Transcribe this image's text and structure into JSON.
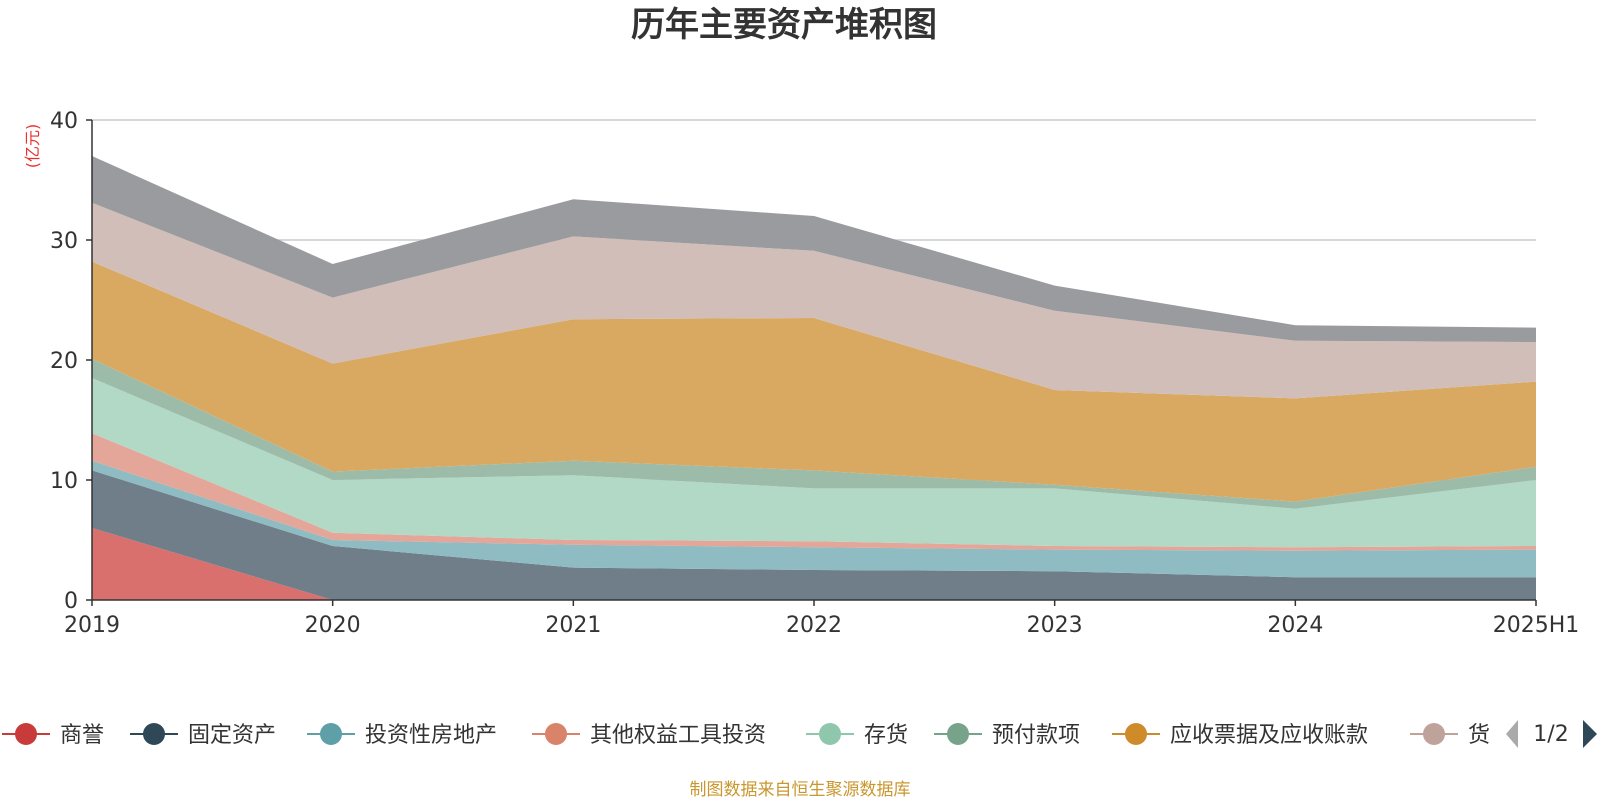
{
  "chart_data": {
    "type": "area",
    "stacked": true,
    "title": "历年主要资产堆积图",
    "y_unit": "(亿元)",
    "ylim": [
      0,
      40
    ],
    "y_ticks": [
      "0",
      "10",
      "20",
      "30",
      "40"
    ],
    "categories": [
      "2019",
      "2020",
      "2021",
      "2022",
      "2023",
      "2024",
      "2025H1"
    ],
    "grid": true,
    "series": [
      {
        "name": "商誉",
        "color": "#d9706e",
        "values": [
          6.0,
          0,
          0,
          0,
          0,
          0,
          0
        ]
      },
      {
        "name": "固定资产",
        "color": "#6f7e89",
        "values": [
          4.8,
          4.5,
          2.7,
          2.5,
          2.4,
          1.9,
          1.9
        ]
      },
      {
        "name": "投资性房地产",
        "color": "#8fbbc2",
        "values": [
          0.8,
          0.5,
          1.9,
          1.9,
          1.8,
          2.2,
          2.3
        ]
      },
      {
        "name": "其他权益工具投资",
        "color": "#e3a698",
        "values": [
          2.3,
          0.6,
          0.4,
          0.5,
          0.3,
          0.3,
          0.3
        ]
      },
      {
        "name": "存货",
        "color": "#b2d8c6",
        "values": [
          4.6,
          4.4,
          5.4,
          4.4,
          4.8,
          3.2,
          5.5
        ]
      },
      {
        "name": "预付款项",
        "color": "#9dbba9",
        "values": [
          1.6,
          0.7,
          1.2,
          1.5,
          0.3,
          0.6,
          1.1
        ]
      },
      {
        "name": "应收票据及应收账款",
        "color": "#d9a962",
        "values": [
          8.1,
          9.0,
          11.8,
          12.7,
          7.9,
          8.6,
          7.1
        ]
      },
      {
        "name": "货币资金",
        "color": "#d1beb8",
        "values": [
          4.9,
          5.5,
          6.9,
          5.6,
          6.6,
          4.8,
          3.3
        ]
      },
      {
        "name": "",
        "color": "#9a9b9f",
        "values": [
          3.9,
          2.8,
          3.1,
          2.9,
          2.1,
          1.3,
          1.2
        ]
      }
    ],
    "legend": {
      "placement": "bottom",
      "items": [
        {
          "label": "商誉",
          "color": "#c93b3b"
        },
        {
          "label": "固定资产",
          "color": "#2f4858"
        },
        {
          "label": "投资性房地产",
          "color": "#5f9fa8"
        },
        {
          "label": "其他权益工具投资",
          "color": "#d9836a"
        },
        {
          "label": "存货",
          "color": "#8fc7ad"
        },
        {
          "label": "预付款项",
          "color": "#77a38a"
        },
        {
          "label": "应收票据及应收账款",
          "color": "#cf8b2a"
        },
        {
          "label": "货",
          "color": "#bfa39b"
        }
      ],
      "page": "1/2"
    },
    "source": "制图数据来自恒生聚源数据库"
  }
}
